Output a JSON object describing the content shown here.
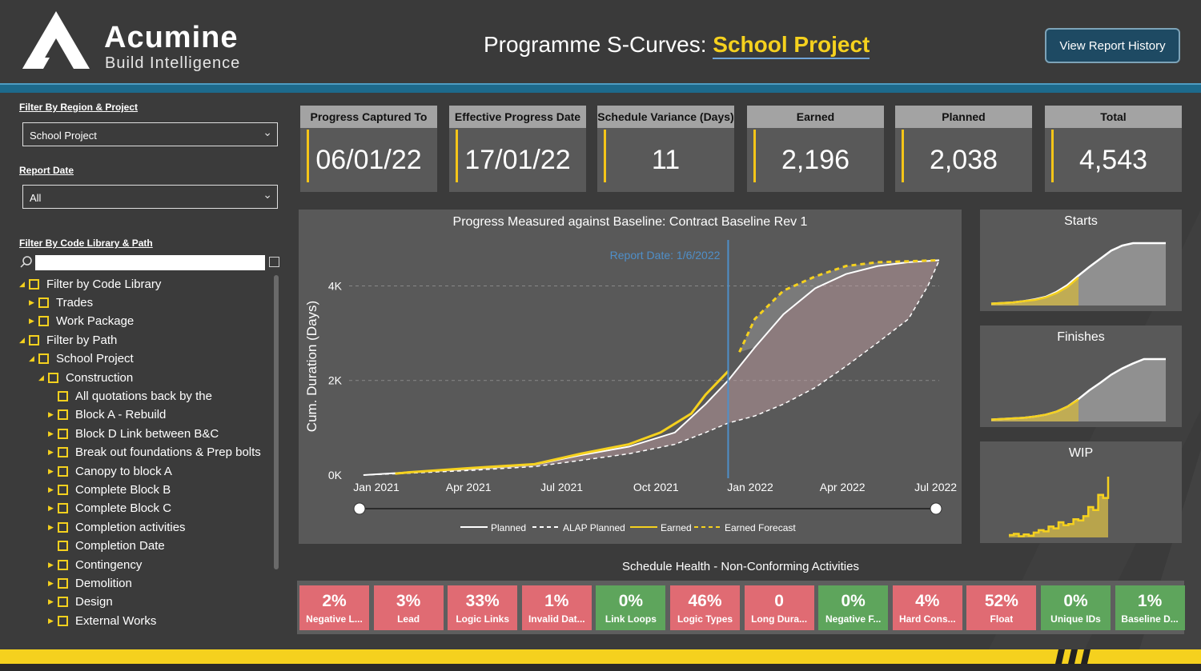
{
  "header": {
    "brand_name": "Acumine",
    "brand_tagline": "Build Intelligence",
    "title_prefix": "Programme S-Curves:",
    "title_project": "School Project",
    "report_history_button": "View Report History"
  },
  "filters": {
    "region_label": "Filter By Region & Project",
    "region_value": "School Project",
    "date_label": "Report Date",
    "date_value": "All",
    "code_label": "Filter By Code Library & Path",
    "search_value": ""
  },
  "tree": [
    {
      "label": "Filter by Code Library",
      "level": 0,
      "expand": "open"
    },
    {
      "label": "Trades",
      "level": 1,
      "expand": "closed"
    },
    {
      "label": "Work Package",
      "level": 1,
      "expand": "closed"
    },
    {
      "label": "Filter by Path",
      "level": 0,
      "expand": "open"
    },
    {
      "label": "School Project",
      "level": 1,
      "expand": "open"
    },
    {
      "label": "Construction",
      "level": 2,
      "expand": "open"
    },
    {
      "label": "All quotations back by the",
      "level": 3,
      "expand": "none"
    },
    {
      "label": "Block A - Rebuild",
      "level": 3,
      "expand": "closed"
    },
    {
      "label": "Block D Link between B&C",
      "level": 3,
      "expand": "closed"
    },
    {
      "label": "Break out foundations & Prep bolts",
      "level": 3,
      "expand": "closed"
    },
    {
      "label": "Canopy to block A",
      "level": 3,
      "expand": "closed"
    },
    {
      "label": "Complete Block B",
      "level": 3,
      "expand": "closed"
    },
    {
      "label": "Complete Block C",
      "level": 3,
      "expand": "closed"
    },
    {
      "label": "Completion activities",
      "level": 3,
      "expand": "closed"
    },
    {
      "label": "Completion Date",
      "level": 3,
      "expand": "none"
    },
    {
      "label": "Contingency",
      "level": 3,
      "expand": "closed"
    },
    {
      "label": "Demolition",
      "level": 3,
      "expand": "closed"
    },
    {
      "label": "Design",
      "level": 3,
      "expand": "closed"
    },
    {
      "label": "External Works",
      "level": 3,
      "expand": "closed"
    }
  ],
  "kpis": [
    {
      "label": "Progress Captured To",
      "value": "06/01/22"
    },
    {
      "label": "Effective Progress Date",
      "value": "17/01/22"
    },
    {
      "label": "Schedule Variance (Days)",
      "value": "11"
    },
    {
      "label": "Earned",
      "value": "2,196"
    },
    {
      "label": "Planned",
      "value": "2,038"
    },
    {
      "label": "Total",
      "value": "4,543"
    }
  ],
  "chart_data": [
    {
      "type": "line",
      "title": "Progress Measured against Baseline: Contract Baseline Rev 1",
      "ylabel": "Cum. Duration (Days)",
      "xlabel": "",
      "x_ticks": [
        "Jan 2021",
        "Apr 2021",
        "Jul 2021",
        "Oct 2021",
        "Jan 2022",
        "Apr 2022",
        "Jul 2022"
      ],
      "y_ticks": [
        "0K",
        "2K",
        "4K"
      ],
      "ylim": [
        0,
        4600
      ],
      "xlim": [
        "2021-01-01",
        "2022-07-31"
      ],
      "grid": true,
      "legend_position": "bottom",
      "annotation": "Report Date: 1/6/2022",
      "annotation_x": "2022-01-06",
      "colors": {
        "planned": "#ffffff",
        "alap": "#ffffff",
        "earned": "#f5d11e",
        "forecast": "#f5d11e",
        "report_line": "#4f8fc9"
      },
      "series": [
        {
          "name": "Planned",
          "style": "solid",
          "x": [
            "2021-01-15",
            "2021-03-01",
            "2021-05-01",
            "2021-07-01",
            "2021-08-15",
            "2021-10-01",
            "2021-11-15",
            "2021-12-15",
            "2022-01-06",
            "2022-02-01",
            "2022-03-01",
            "2022-04-01",
            "2022-05-01",
            "2022-06-01",
            "2022-07-01",
            "2022-07-31"
          ],
          "y": [
            0,
            60,
            130,
            220,
            420,
            600,
            900,
            1500,
            2000,
            2700,
            3400,
            3950,
            4250,
            4420,
            4500,
            4543
          ]
        },
        {
          "name": "ALAP Planned",
          "style": "dashed",
          "x": [
            "2021-01-15",
            "2021-03-01",
            "2021-05-01",
            "2021-07-01",
            "2021-08-15",
            "2021-10-01",
            "2021-11-15",
            "2021-12-15",
            "2022-01-06",
            "2022-02-01",
            "2022-03-01",
            "2022-04-01",
            "2022-05-01",
            "2022-06-01",
            "2022-07-01",
            "2022-07-20",
            "2022-07-31"
          ],
          "y": [
            0,
            40,
            100,
            180,
            310,
            450,
            650,
            900,
            1100,
            1250,
            1500,
            1850,
            2300,
            2800,
            3300,
            4000,
            4543
          ]
        },
        {
          "name": "Earned",
          "style": "solid",
          "x": [
            "2021-02-15",
            "2021-03-01",
            "2021-05-01",
            "2021-07-01",
            "2021-08-15",
            "2021-10-01",
            "2021-11-01",
            "2021-12-01",
            "2021-12-15",
            "2022-01-06"
          ],
          "y": [
            30,
            60,
            150,
            230,
            450,
            650,
            900,
            1300,
            1700,
            2196
          ]
        },
        {
          "name": "Earned Forecast",
          "style": "dashed",
          "x": [
            "2022-01-17",
            "2022-02-01",
            "2022-03-01",
            "2022-04-01",
            "2022-05-01",
            "2022-06-01",
            "2022-07-01",
            "2022-07-31"
          ],
          "y": [
            2600,
            3300,
            3900,
            4200,
            4420,
            4500,
            4520,
            4543
          ]
        }
      ]
    },
    {
      "type": "area",
      "title": "Starts",
      "series": [
        {
          "name": "Actual",
          "values": [
            0.03,
            0.04,
            0.05,
            0.07,
            0.09,
            0.13,
            0.2,
            0.3,
            0.45
          ]
        },
        {
          "name": "Planned",
          "values": [
            0.03,
            0.04,
            0.05,
            0.07,
            0.1,
            0.14,
            0.22,
            0.33,
            0.48,
            0.62,
            0.75,
            0.88,
            0.96,
            1.0,
            1.0,
            1.0,
            1.0
          ]
        }
      ]
    },
    {
      "type": "area",
      "title": "Finishes",
      "series": [
        {
          "name": "Actual",
          "values": [
            0.03,
            0.04,
            0.05,
            0.06,
            0.08,
            0.11,
            0.16,
            0.24,
            0.35
          ]
        },
        {
          "name": "Planned",
          "values": [
            0.03,
            0.04,
            0.05,
            0.06,
            0.08,
            0.11,
            0.16,
            0.24,
            0.36,
            0.5,
            0.62,
            0.75,
            0.85,
            0.93,
            1.0,
            1.0,
            1.0
          ]
        }
      ]
    },
    {
      "type": "area",
      "title": "WIP",
      "series": [
        {
          "name": "WIP",
          "values": [
            0.04,
            0.06,
            0.02,
            0.05,
            0.03,
            0.08,
            0.12,
            0.1,
            0.18,
            0.15,
            0.25,
            0.2,
            0.22,
            0.3,
            0.28,
            0.35,
            0.5,
            0.45,
            0.7,
            0.65,
            1.0
          ]
        }
      ]
    }
  ],
  "health": {
    "title": "Schedule Health - Non-Conforming Activities",
    "cells": [
      {
        "value": "2%",
        "label": "Negative L...",
        "status": "bad"
      },
      {
        "value": "3%",
        "label": "Lead",
        "status": "bad"
      },
      {
        "value": "33%",
        "label": "Logic Links",
        "status": "bad"
      },
      {
        "value": "1%",
        "label": "Invalid Dat...",
        "status": "bad"
      },
      {
        "value": "0%",
        "label": "Link Loops",
        "status": "good"
      },
      {
        "value": "46%",
        "label": "Logic Types",
        "status": "bad"
      },
      {
        "value": "0",
        "label": "Long Dura...",
        "status": "bad"
      },
      {
        "value": "0%",
        "label": "Negative F...",
        "status": "good"
      },
      {
        "value": "4%",
        "label": "Hard Cons...",
        "status": "bad"
      },
      {
        "value": "52%",
        "label": "Float",
        "status": "bad"
      },
      {
        "value": "0%",
        "label": "Unique IDs",
        "status": "good"
      },
      {
        "value": "1%",
        "label": "Baseline D...",
        "status": "good"
      }
    ],
    "colors": {
      "bad": "#e06b73",
      "good": "#5ea55c"
    }
  }
}
